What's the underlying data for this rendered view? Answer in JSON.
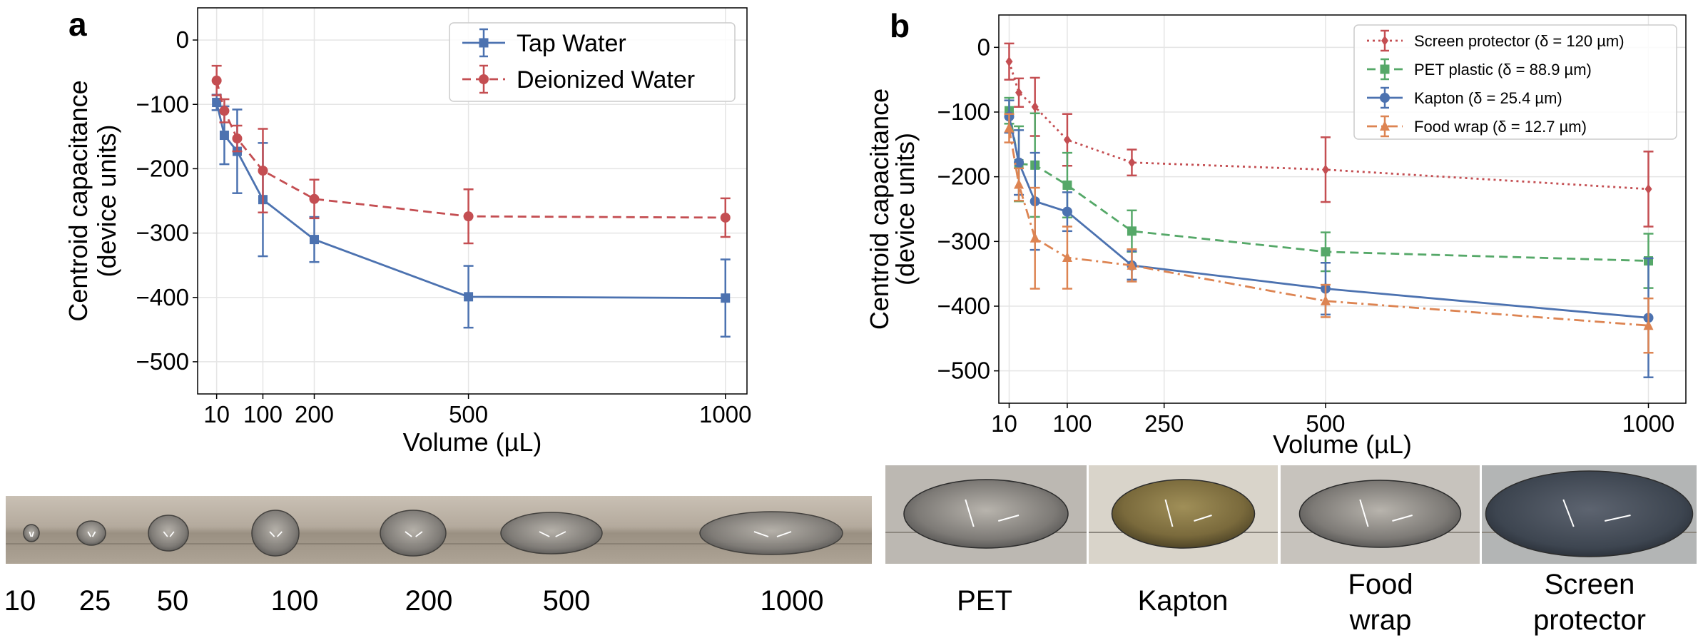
{
  "chart_data": [
    {
      "panel": "a",
      "type": "line",
      "xlabel": "Volume (µL)",
      "ylabel": [
        "Centroid capacitance",
        "(device units)"
      ],
      "xlim": [
        -27,
        1042
      ],
      "ylim": [
        -550,
        50
      ],
      "xticks": [
        10,
        100,
        200,
        500,
        1000
      ],
      "xtick_labels": [
        "10",
        "100",
        "200",
        "500",
        "1000"
      ],
      "yticks": [
        0,
        -100,
        -200,
        -300,
        -400,
        -500
      ],
      "ytick_labels": [
        "0",
        "−100",
        "−200",
        "−300",
        "−400",
        "−500"
      ],
      "grid": true,
      "legend_position": "top-right",
      "series": [
        {
          "name": "Tap Water",
          "color": "#4C72B0",
          "linestyle": "solid",
          "marker": "square",
          "x": [
            10,
            25,
            50,
            100,
            200,
            500,
            1000
          ],
          "y": [
            -97,
            -148,
            -173,
            -248,
            -310,
            -399,
            -401
          ],
          "err": [
            12,
            45,
            65,
            88,
            35,
            48,
            60
          ]
        },
        {
          "name": "Deionized Water",
          "color": "#C44E52",
          "linestyle": "dashed",
          "marker": "circle",
          "x": [
            10,
            25,
            50,
            100,
            200,
            500,
            1000
          ],
          "y": [
            -63,
            -110,
            -153,
            -203,
            -247,
            -274,
            -276
          ],
          "err": [
            23,
            18,
            20,
            65,
            30,
            42,
            30
          ]
        }
      ]
    },
    {
      "panel": "b",
      "type": "line",
      "xlabel": "Volume (µL)",
      "ylabel": [
        "Centroid capacitance",
        "(device units)"
      ],
      "xlim": [
        -6,
        1058
      ],
      "ylim": [
        -550,
        50
      ],
      "xticks": [
        10,
        100,
        250,
        500,
        1000
      ],
      "xtick_labels": [
        "10",
        "100",
        "250",
        "500",
        "1000"
      ],
      "yticks": [
        0,
        -100,
        -200,
        -300,
        -400,
        -500
      ],
      "ytick_labels": [
        "0",
        "−100",
        "−200",
        "−300",
        "−400",
        "−500"
      ],
      "grid": true,
      "legend_position": "top-right",
      "series": [
        {
          "name": "Screen protector (δ = 120 µm)",
          "color": "#C44E52",
          "linestyle": "dotted",
          "marker": "diamond",
          "x": [
            10,
            25,
            50,
            100,
            200,
            500,
            1000
          ],
          "y": [
            -22,
            -70,
            -92,
            -143,
            -178,
            -189,
            -219
          ],
          "err": [
            28,
            22,
            45,
            40,
            20,
            50,
            58
          ]
        },
        {
          "name": "PET plastic (δ = 88.9 µm)",
          "color": "#55A868",
          "linestyle": "dashed",
          "marker": "square",
          "x": [
            10,
            25,
            50,
            100,
            200,
            500,
            1000
          ],
          "y": [
            -98,
            -180,
            -182,
            -213,
            -284,
            -316,
            -330
          ],
          "err": [
            20,
            58,
            80,
            50,
            32,
            30,
            42
          ]
        },
        {
          "name": "Kapton (δ = 25.4 µm)",
          "color": "#4C72B0",
          "linestyle": "solid",
          "marker": "circle",
          "x": [
            10,
            25,
            50,
            100,
            200,
            500,
            1000
          ],
          "y": [
            -107,
            -178,
            -238,
            -254,
            -337,
            -373,
            -418
          ],
          "err": [
            25,
            50,
            75,
            30,
            22,
            40,
            92
          ]
        },
        {
          "name": "Food wrap (δ = 12.7 µm)",
          "color": "#DD8452",
          "linestyle": "dashdot",
          "marker": "triangle",
          "x": [
            10,
            25,
            50,
            100,
            200,
            500,
            1000
          ],
          "y": [
            -125,
            -212,
            -295,
            -325,
            -337,
            -392,
            -430
          ],
          "err": [
            22,
            25,
            78,
            48,
            25,
            25,
            42
          ]
        }
      ]
    }
  ],
  "panel_labels": [
    "a",
    "b"
  ],
  "photos_a": {
    "labels": [
      "10",
      "25",
      "50",
      "100",
      "200",
      "500",
      "1000"
    ]
  },
  "photos_b": {
    "labels": [
      [
        "PET"
      ],
      [
        "Kapton"
      ],
      [
        "Food",
        "wrap"
      ],
      [
        "Screen",
        "protector"
      ]
    ]
  },
  "colors": {
    "axis": "#000000",
    "grid": "#E5E5E5",
    "strip_a": "#B2A89B",
    "photo_bg": "#B7B1A8"
  }
}
